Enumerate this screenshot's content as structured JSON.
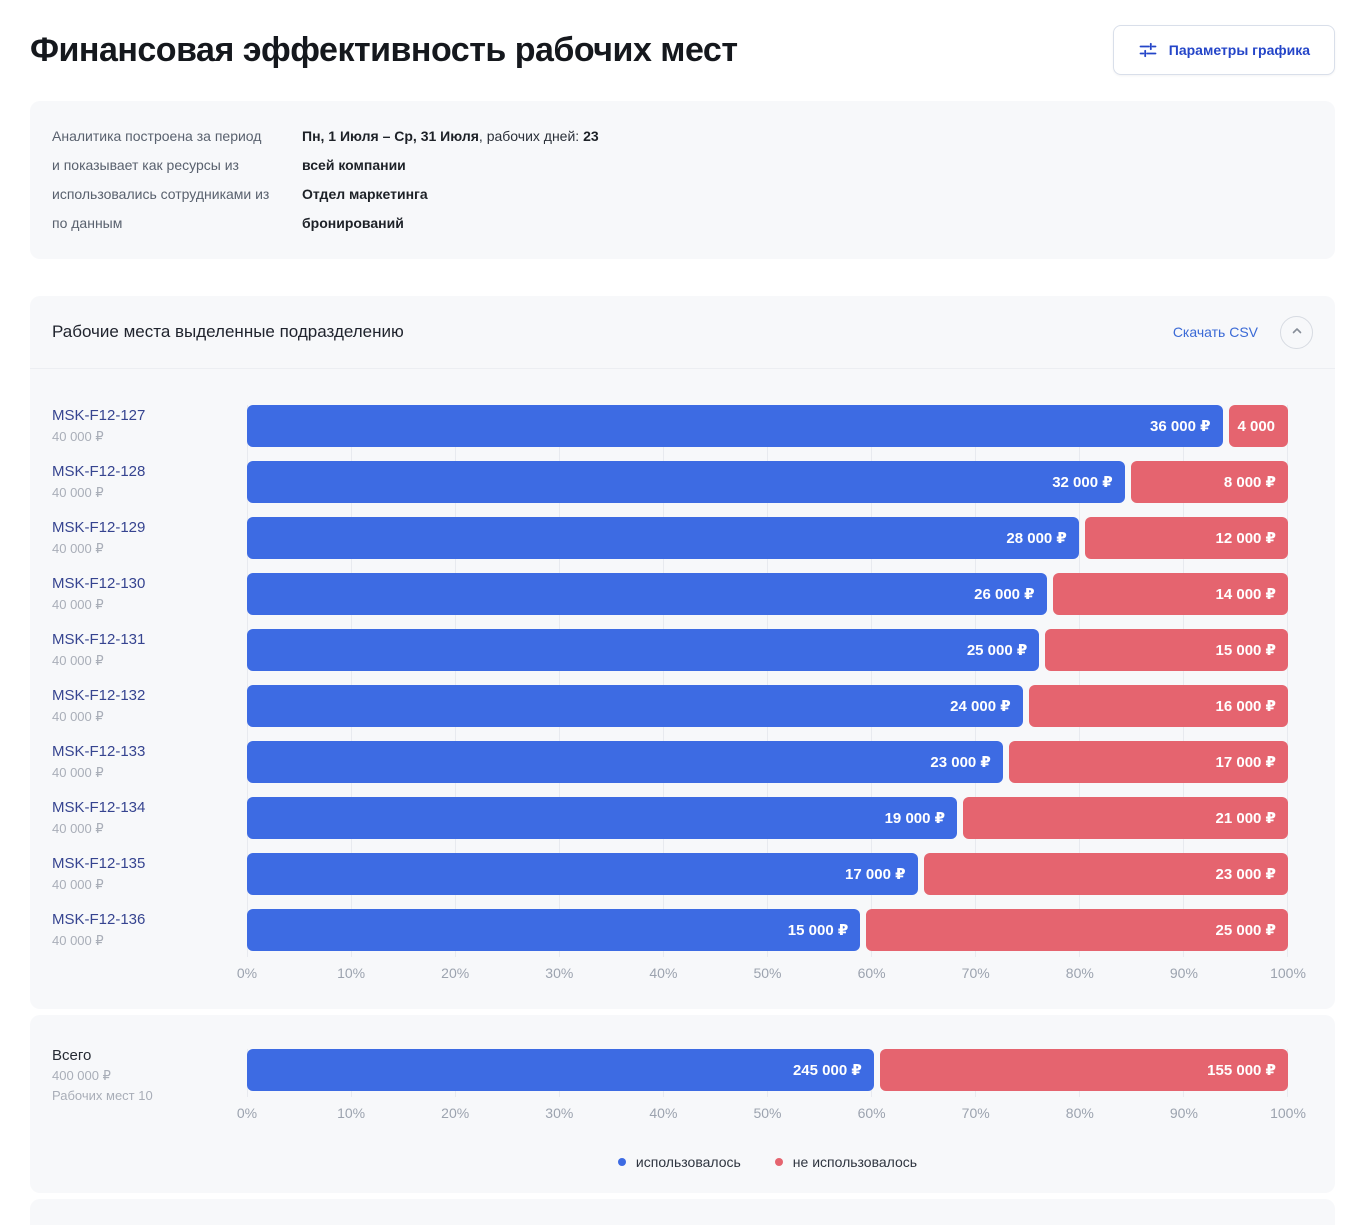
{
  "header": {
    "title": "Финансовая эффективность рабочих мест",
    "settings_button_label": "Параметры графика"
  },
  "info_panel": {
    "rows": [
      {
        "label": "Аналитика построена за период",
        "value": "Пн, 1 Июля – Ср, 31 Июля",
        "suffix": ", рабочих дней: ",
        "suffix_value": "23"
      },
      {
        "label": "и показывает как ресурсы из",
        "value": "всей компании"
      },
      {
        "label": "использовались сотрудниками из",
        "value": "Отдел маркетинга"
      },
      {
        "label": "по данным",
        "value": "бронирований"
      }
    ]
  },
  "section": {
    "title": "Рабочие места выделенные подразделению",
    "download_csv_label": "Скачать CSV"
  },
  "colors": {
    "used": "#3d6be3",
    "unused": "#e5646f",
    "accent_blue": "#2445c8",
    "link_blue": "#3b6ad6",
    "card_bg": "#f7f8fa"
  },
  "chart_data": {
    "type": "bar",
    "orientation": "horizontal",
    "stacked": true,
    "unit": "₽",
    "x_axis": {
      "ticks": [
        "0%",
        "10%",
        "20%",
        "30%",
        "40%",
        "50%",
        "60%",
        "70%",
        "80%",
        "90%",
        "100%"
      ],
      "range": [
        0,
        100
      ]
    },
    "series_names": [
      "использовалось",
      "не использовалось"
    ],
    "rows": [
      {
        "name": "MSK-F12-127",
        "budget_label": "40 000 ₽",
        "used_value": 36000,
        "unused_value": 4000,
        "used_label": "36 000 ₽",
        "unused_label": "4 000",
        "used_width_pct": 94.0
      },
      {
        "name": "MSK-F12-128",
        "budget_label": "40 000 ₽",
        "used_value": 32000,
        "unused_value": 8000,
        "used_label": "32 000 ₽",
        "unused_label": "8 000 ₽",
        "used_width_pct": 84.6
      },
      {
        "name": "MSK-F12-129",
        "budget_label": "40 000 ₽",
        "used_value": 28000,
        "unused_value": 12000,
        "used_label": "28 000 ₽",
        "unused_label": "12 000 ₽",
        "used_width_pct": 80.2
      },
      {
        "name": "MSK-F12-130",
        "budget_label": "40 000 ₽",
        "used_value": 26000,
        "unused_value": 14000,
        "used_label": "26 000 ₽",
        "unused_label": "14 000 ₽",
        "used_width_pct": 77.1
      },
      {
        "name": "MSK-F12-131",
        "budget_label": "40 000 ₽",
        "used_value": 25000,
        "unused_value": 15000,
        "used_label": "25 000 ₽",
        "unused_label": "15 000 ₽",
        "used_width_pct": 76.4
      },
      {
        "name": "MSK-F12-132",
        "budget_label": "40 000 ₽",
        "used_value": 24000,
        "unused_value": 16000,
        "used_label": "24 000 ₽",
        "unused_label": "16 000 ₽",
        "used_width_pct": 74.8
      },
      {
        "name": "MSK-F12-133",
        "budget_label": "40 000 ₽",
        "used_value": 23000,
        "unused_value": 17000,
        "used_label": "23 000 ₽",
        "unused_label": "17 000 ₽",
        "used_width_pct": 72.9
      },
      {
        "name": "MSK-F12-134",
        "budget_label": "40 000 ₽",
        "used_value": 19000,
        "unused_value": 21000,
        "used_label": "19 000 ₽",
        "unused_label": "21 000 ₽",
        "used_width_pct": 68.5
      },
      {
        "name": "MSK-F12-135",
        "budget_label": "40 000 ₽",
        "used_value": 17000,
        "unused_value": 23000,
        "used_label": "17 000 ₽",
        "unused_label": "23 000 ₽",
        "used_width_pct": 64.7
      },
      {
        "name": "MSK-F12-136",
        "budget_label": "40 000 ₽",
        "used_value": 15000,
        "unused_value": 25000,
        "used_label": "15 000 ₽",
        "unused_label": "25 000 ₽",
        "used_width_pct": 59.2
      }
    ],
    "total": {
      "name": "Всего",
      "budget_label": "400 000 ₽",
      "workplaces_label": "Рабочих мест 10",
      "used_value": 245000,
      "unused_value": 155000,
      "used_label": "245 000 ₽",
      "unused_label": "155 000 ₽",
      "used_width_pct": 60.5
    },
    "legend": [
      {
        "label": "использовалось",
        "color": "#3d6be3"
      },
      {
        "label": "не использовалось",
        "color": "#e5646f"
      }
    ]
  }
}
